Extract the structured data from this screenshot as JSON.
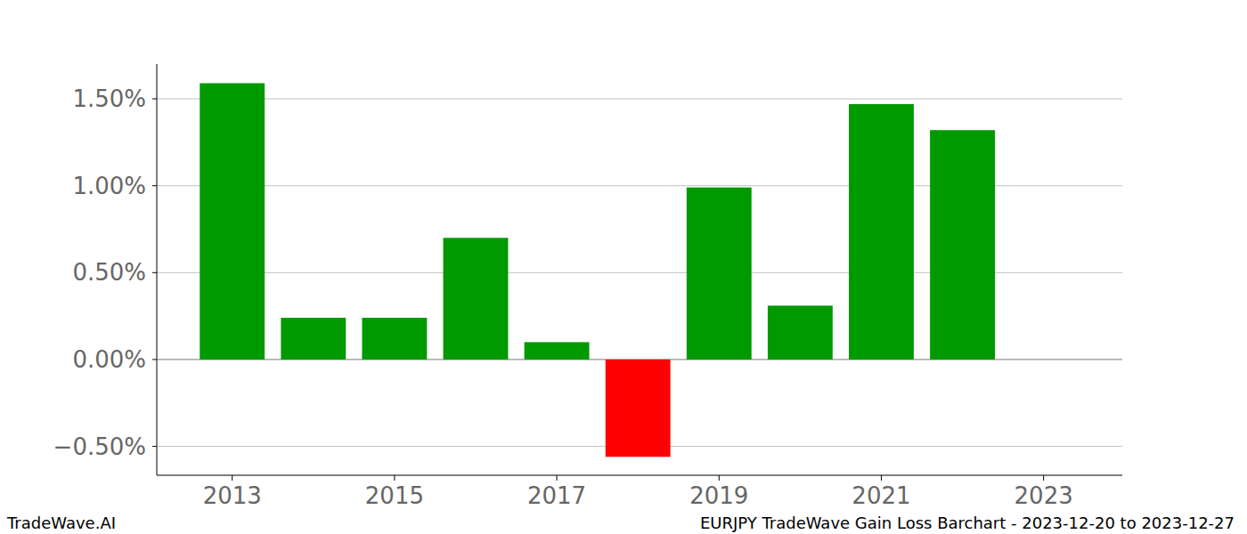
{
  "chart_data": {
    "type": "bar",
    "title": "EURJPY TradeWave Gain Loss Barchart - 2023-12-20 to 2023-12-27",
    "annotations": [
      "TradeWave.AI"
    ],
    "x": [
      2013,
      2014,
      2015,
      2016,
      2017,
      2018,
      2019,
      2020,
      2021,
      2022
    ],
    "values": [
      1.59,
      0.24,
      0.24,
      0.7,
      0.1,
      -0.56,
      0.99,
      0.31,
      1.47,
      1.32
    ],
    "colors": [
      "#009900",
      "#009900",
      "#009900",
      "#009900",
      "#009900",
      "#ff0000",
      "#009900",
      "#009900",
      "#009900",
      "#009900"
    ],
    "xlim": [
      2012.07,
      2023.97
    ],
    "xticks": [
      2013,
      2015,
      2017,
      2019,
      2021,
      2023
    ],
    "ylim": [
      -0.666,
      1.7
    ],
    "yticks": [
      {
        "value": -0.5,
        "label": "−0.50%"
      },
      {
        "value": 0,
        "label": "0.00%"
      },
      {
        "value": 0.5,
        "label": "0.50%"
      },
      {
        "value": 1.0,
        "label": "1.00%"
      },
      {
        "value": 1.5,
        "label": "1.50%"
      }
    ],
    "grid": true
  }
}
